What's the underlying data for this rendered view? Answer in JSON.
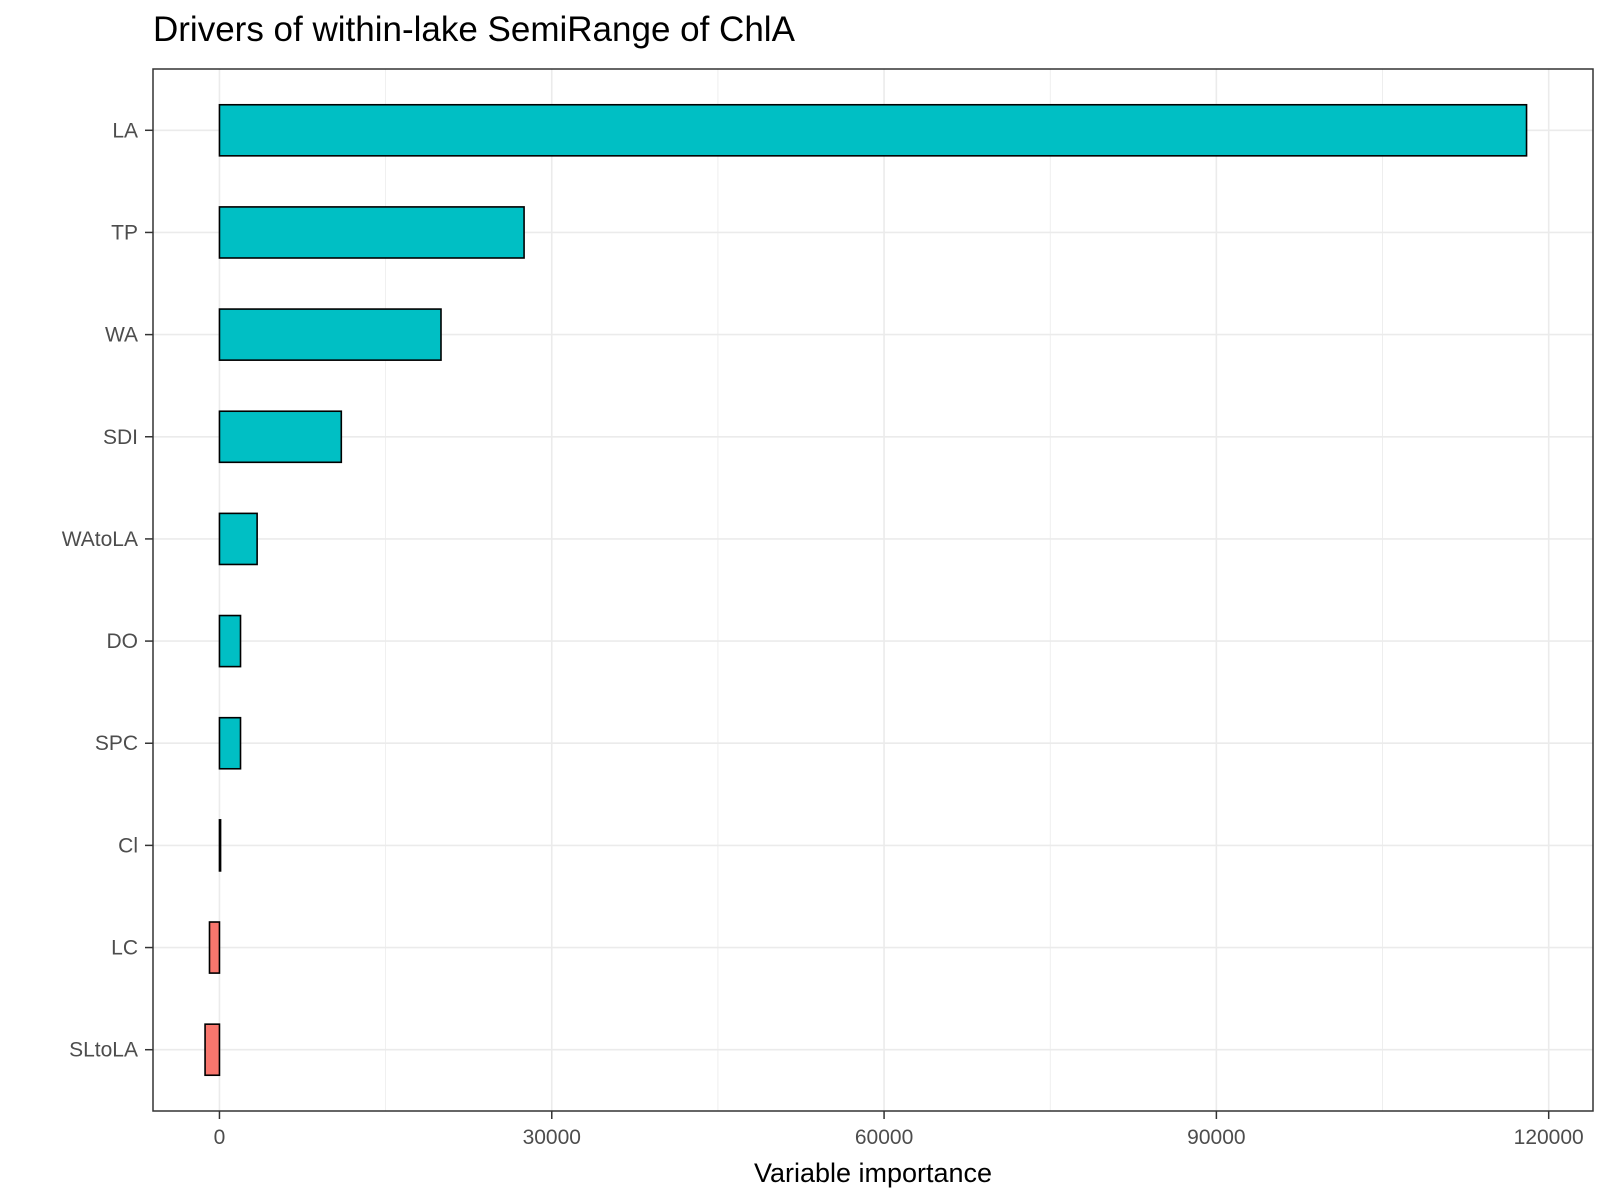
{
  "chart_data": {
    "type": "bar",
    "orientation": "horizontal",
    "title": "Drivers of within-lake SemiRange of ChlA",
    "xlabel": "Variable importance",
    "ylabel": "",
    "xlim": [
      -6000,
      124000
    ],
    "xticks": [
      0,
      30000,
      60000,
      90000,
      120000
    ],
    "grid": true,
    "legend": "none",
    "categories": [
      "LA",
      "TP",
      "WA",
      "SDI",
      "WAtoLA",
      "DO",
      "SPC",
      "Cl",
      "LC",
      "SLtoLA"
    ],
    "values": [
      118000,
      27500,
      20000,
      11000,
      3400,
      1900,
      1900,
      100,
      -900,
      -1300
    ],
    "colors": {
      "positive": "#00BFC4",
      "negative": "#F8766D",
      "outline": "#000000",
      "panel_border": "#333333",
      "grid": "#ebebeb"
    }
  }
}
